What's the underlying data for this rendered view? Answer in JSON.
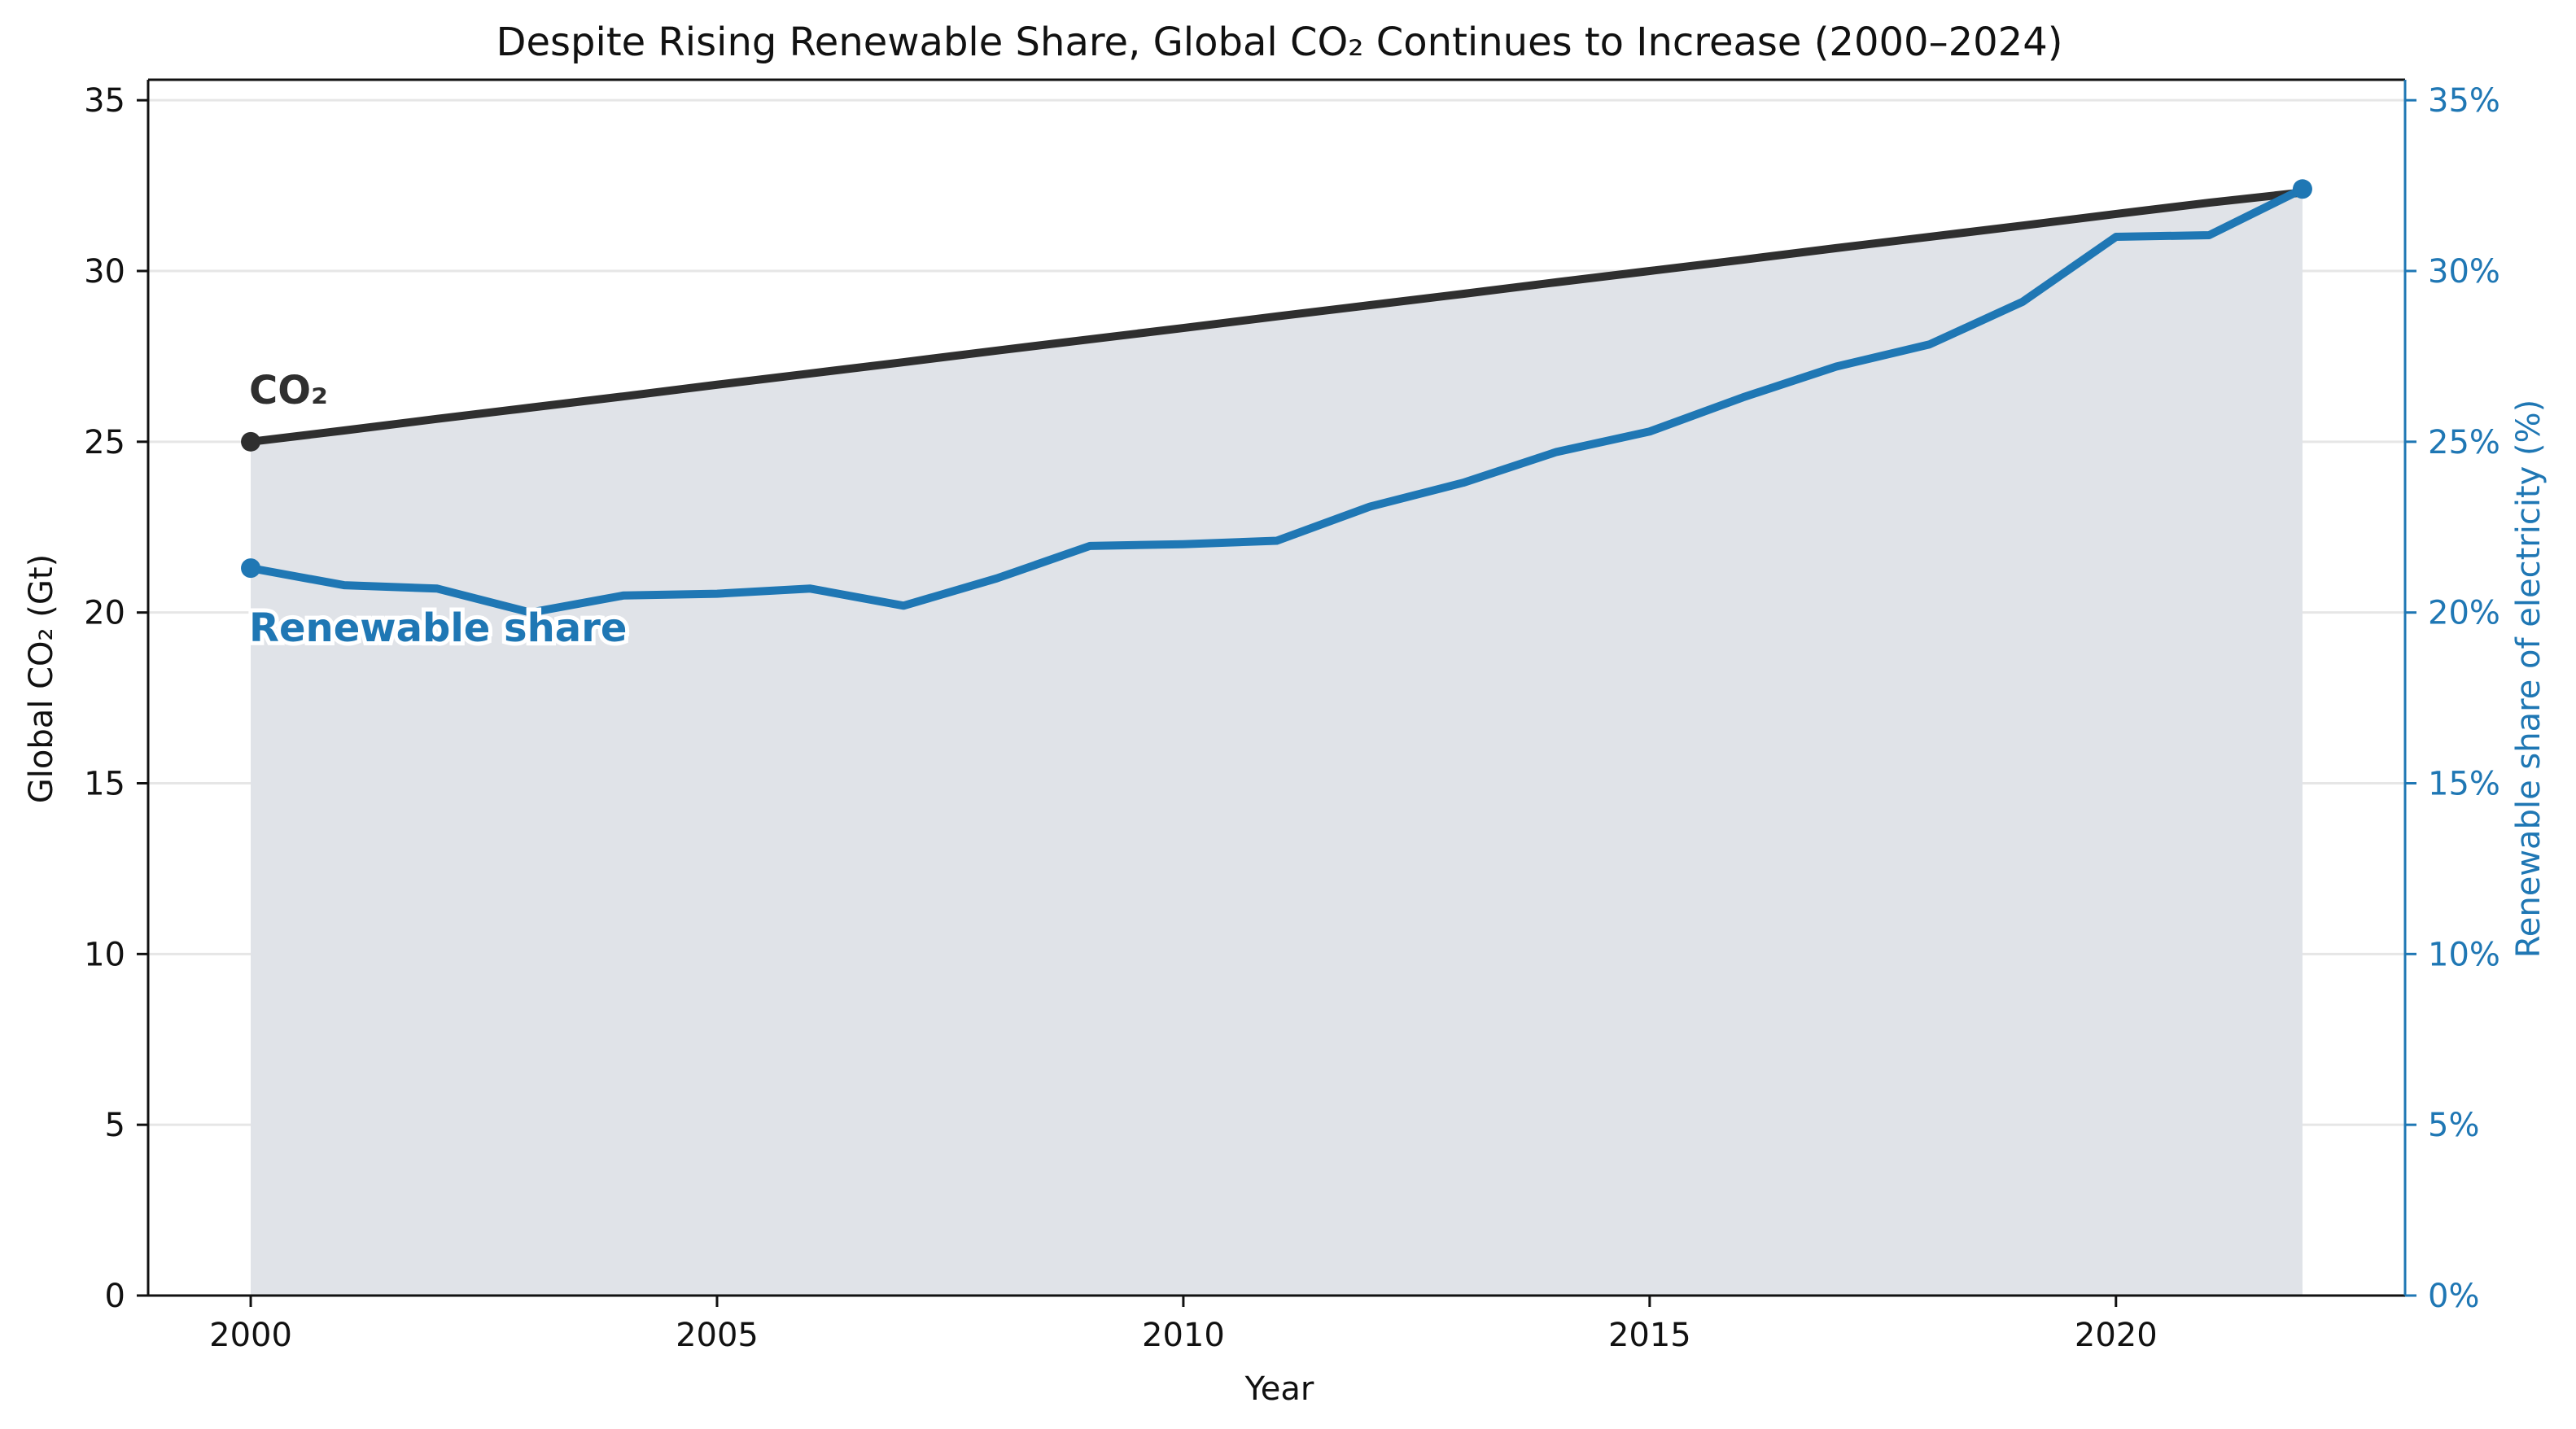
{
  "chart_data": {
    "type": "line",
    "title": "Despite Rising Renewable Share, Global CO₂ Continues to Increase (2000–2024)",
    "xlabel": "Year",
    "ylabel_left": "Global CO₂ (Gt)",
    "ylabel_right": "Renewable share of electricity (%)",
    "xlim": [
      1998.9,
      2023.1
    ],
    "ylim_left": [
      0,
      35.6
    ],
    "ylim_right": [
      0,
      35.6
    ],
    "x_ticks": [
      2000,
      2005,
      2010,
      2015,
      2020
    ],
    "y_left_ticks": [
      0,
      5,
      10,
      15,
      20,
      25,
      30,
      35
    ],
    "y_right_ticks": [
      "0%",
      "5%",
      "10%",
      "15%",
      "20%",
      "25%",
      "30%",
      "35%"
    ],
    "y_right_tick_values": [
      0,
      5,
      10,
      15,
      20,
      25,
      30,
      35
    ],
    "grid": "horizontal",
    "x": [
      2000,
      2001,
      2002,
      2003,
      2004,
      2005,
      2006,
      2007,
      2008,
      2009,
      2010,
      2011,
      2012,
      2013,
      2014,
      2015,
      2016,
      2017,
      2018,
      2019,
      2020,
      2021,
      2022
    ],
    "series": [
      {
        "axis": "left",
        "color": "#2f2f2f",
        "values": [
          25.0,
          25.33,
          25.67,
          26.0,
          26.33,
          26.67,
          27.0,
          27.33,
          27.67,
          28.0,
          28.33,
          28.67,
          29.0,
          29.33,
          29.67,
          30.0,
          30.33,
          30.67,
          31.0,
          31.33,
          31.67,
          32.0,
          32.3
        ]
      },
      {
        "axis": "right",
        "color": "#1f77b4",
        "values": [
          21.3,
          20.8,
          20.7,
          20.0,
          20.5,
          20.55,
          20.7,
          20.2,
          21.0,
          21.95,
          22.0,
          22.1,
          23.1,
          23.8,
          24.7,
          25.3,
          26.3,
          27.2,
          27.85,
          29.1,
          31.0,
          31.05,
          32.4
        ]
      }
    ],
    "area_fill": {
      "color": "#e0e3e8",
      "x_range": [
        2000,
        2022
      ],
      "top": 32.3
    },
    "annotations": {
      "co2_label": "CO₂",
      "renewable_label": "Renewable share"
    }
  }
}
